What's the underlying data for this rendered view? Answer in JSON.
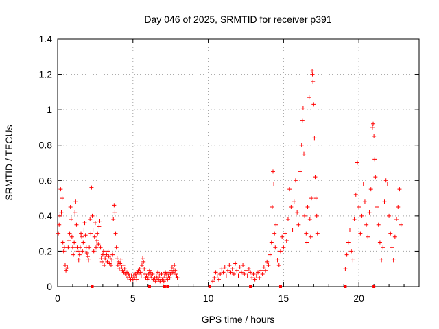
{
  "chart_data": {
    "type": "scatter",
    "title": "Day 046 of 2025, SRMTID for receiver p391",
    "xlabel": "GPS time / hours",
    "ylabel": "SRMTID / TECUs",
    "xlim": [
      0,
      24
    ],
    "ylim": [
      0,
      1.4
    ],
    "xticks": [
      "0",
      "5",
      "10",
      "15",
      "20"
    ],
    "yticks": [
      "0",
      "0.2",
      "0.4",
      "0.6",
      "0.8",
      "1",
      "1.2",
      "1.4"
    ],
    "marker": "plus",
    "color": "#ff0000",
    "grid": true,
    "series": [
      {
        "name": "SRMTID",
        "points": [
          [
            0.05,
            0.3
          ],
          [
            0.1,
            0.35
          ],
          [
            0.15,
            0.4
          ],
          [
            0.2,
            0.55
          ],
          [
            0.25,
            0.42
          ],
          [
            0.3,
            0.5
          ],
          [
            0.35,
            0.25
          ],
          [
            0.4,
            0.2
          ],
          [
            0.45,
            0.22
          ],
          [
            0.5,
            0.12
          ],
          [
            0.55,
            0.09
          ],
          [
            0.6,
            0.1
          ],
          [
            0.65,
            0.11
          ],
          [
            0.7,
            0.22
          ],
          [
            0.75,
            0.26
          ],
          [
            0.8,
            0.3
          ],
          [
            0.85,
            0.45
          ],
          [
            0.9,
            0.38
          ],
          [
            0.95,
            0.28
          ],
          [
            1.0,
            0.22
          ],
          [
            1.05,
            0.18
          ],
          [
            1.1,
            0.25
          ],
          [
            1.15,
            0.42
          ],
          [
            1.2,
            0.48
          ],
          [
            1.25,
            0.35
          ],
          [
            1.3,
            0.22
          ],
          [
            1.35,
            0.2
          ],
          [
            1.4,
            0.15
          ],
          [
            1.45,
            0.18
          ],
          [
            1.5,
            0.22
          ],
          [
            1.55,
            0.3
          ],
          [
            1.6,
            0.28
          ],
          [
            1.65,
            0.2
          ],
          [
            1.7,
            0.25
          ],
          [
            1.75,
            0.32
          ],
          [
            1.8,
            0.36
          ],
          [
            1.85,
            0.29
          ],
          [
            1.9,
            0.22
          ],
          [
            1.95,
            0.19
          ],
          [
            2.0,
            0.17
          ],
          [
            2.05,
            0.15
          ],
          [
            2.1,
            0.22
          ],
          [
            2.15,
            0.38
          ],
          [
            2.2,
            0.3
          ],
          [
            2.25,
            0.56
          ],
          [
            2.3,
            0.4
          ],
          [
            2.35,
            0.32
          ],
          [
            2.4,
            0.2
          ],
          [
            2.45,
            0.28
          ],
          [
            2.5,
            0.36
          ],
          [
            2.55,
            0.22
          ],
          [
            2.6,
            0.26
          ],
          [
            2.65,
            0.3
          ],
          [
            2.7,
            0.24
          ],
          [
            2.75,
            0.34
          ],
          [
            2.8,
            0.37
          ],
          [
            2.85,
            0.22
          ],
          [
            2.9,
            0.16
          ],
          [
            2.95,
            0.14
          ],
          [
            3.0,
            0.18
          ],
          [
            3.05,
            0.2
          ],
          [
            3.1,
            0.12
          ],
          [
            3.15,
            0.16
          ],
          [
            3.2,
            0.15
          ],
          [
            3.25,
            0.18
          ],
          [
            3.3,
            0.14
          ],
          [
            3.35,
            0.2
          ],
          [
            3.4,
            0.17
          ],
          [
            3.45,
            0.13
          ],
          [
            3.5,
            0.16
          ],
          [
            3.55,
            0.12
          ],
          [
            3.6,
            0.15
          ],
          [
            3.65,
            0.18
          ],
          [
            3.7,
            0.38
          ],
          [
            3.75,
            0.46
          ],
          [
            3.8,
            0.42
          ],
          [
            3.85,
            0.3
          ],
          [
            3.9,
            0.22
          ],
          [
            3.95,
            0.16
          ],
          [
            4.0,
            0.12
          ],
          [
            4.05,
            0.14
          ],
          [
            4.1,
            0.1
          ],
          [
            4.15,
            0.13
          ],
          [
            4.2,
            0.15
          ],
          [
            4.25,
            0.11
          ],
          [
            4.3,
            0.09
          ],
          [
            4.35,
            0.12
          ],
          [
            4.4,
            0.08
          ],
          [
            4.45,
            0.1
          ],
          [
            4.5,
            0.07
          ],
          [
            4.55,
            0.06
          ],
          [
            4.6,
            0.08
          ],
          [
            4.65,
            0.05
          ],
          [
            4.7,
            0.07
          ],
          [
            4.75,
            0.06
          ],
          [
            4.8,
            0.05
          ],
          [
            4.85,
            0.04
          ],
          [
            4.9,
            0.06
          ],
          [
            4.95,
            0.05
          ],
          [
            5.0,
            0.04
          ],
          [
            5.05,
            0.06
          ],
          [
            5.1,
            0.05
          ],
          [
            5.15,
            0.07
          ],
          [
            5.2,
            0.06
          ],
          [
            5.25,
            0.04
          ],
          [
            5.3,
            0.08
          ],
          [
            5.35,
            0.09
          ],
          [
            5.4,
            0.07
          ],
          [
            5.45,
            0.1
          ],
          [
            5.5,
            0.08
          ],
          [
            5.55,
            0.06
          ],
          [
            5.6,
            0.12
          ],
          [
            5.65,
            0.16
          ],
          [
            5.7,
            0.14
          ],
          [
            5.75,
            0.1
          ],
          [
            5.8,
            0.07
          ],
          [
            5.85,
            0.05
          ],
          [
            5.9,
            0.06
          ],
          [
            5.95,
            0.04
          ],
          [
            6.0,
            0.05
          ],
          [
            6.05,
            0.07
          ],
          [
            6.1,
            0.09
          ],
          [
            6.15,
            0.08
          ],
          [
            6.2,
            0.06
          ],
          [
            6.25,
            0.05
          ],
          [
            6.3,
            0.07
          ],
          [
            6.35,
            0.04
          ],
          [
            6.4,
            0.06
          ],
          [
            6.45,
            0.05
          ],
          [
            6.5,
            0.03
          ],
          [
            6.55,
            0.06
          ],
          [
            6.6,
            0.05
          ],
          [
            6.65,
            0.08
          ],
          [
            6.7,
            0.04
          ],
          [
            6.75,
            0.06
          ],
          [
            6.8,
            0.03
          ],
          [
            6.85,
            0.05
          ],
          [
            6.9,
            0.07
          ],
          [
            6.95,
            0.04
          ],
          [
            7.0,
            0.05
          ],
          [
            7.05,
            0.03
          ],
          [
            7.1,
            0.06
          ],
          [
            7.15,
            0.08
          ],
          [
            7.2,
            0.07
          ],
          [
            7.25,
            0.05
          ],
          [
            7.3,
            0.04
          ],
          [
            7.35,
            0.06
          ],
          [
            7.4,
            0.08
          ],
          [
            7.45,
            0.05
          ],
          [
            7.5,
            0.07
          ],
          [
            7.55,
            0.09
          ],
          [
            7.6,
            0.11
          ],
          [
            7.65,
            0.08
          ],
          [
            7.7,
            0.1
          ],
          [
            7.75,
            0.12
          ],
          [
            7.8,
            0.09
          ],
          [
            7.85,
            0.07
          ],
          [
            7.9,
            0.06
          ],
          [
            7.95,
            0.05
          ],
          [
            10.3,
            0.03
          ],
          [
            10.4,
            0.05
          ],
          [
            10.5,
            0.08
          ],
          [
            10.6,
            0.06
          ],
          [
            10.7,
            0.04
          ],
          [
            10.8,
            0.07
          ],
          [
            10.9,
            0.1
          ],
          [
            11.0,
            0.08
          ],
          [
            11.1,
            0.11
          ],
          [
            11.2,
            0.06
          ],
          [
            11.3,
            0.09
          ],
          [
            11.4,
            0.12
          ],
          [
            11.5,
            0.08
          ],
          [
            11.6,
            0.1
          ],
          [
            11.7,
            0.07
          ],
          [
            11.8,
            0.13
          ],
          [
            11.9,
            0.09
          ],
          [
            12.0,
            0.06
          ],
          [
            12.1,
            0.11
          ],
          [
            12.2,
            0.08
          ],
          [
            12.3,
            0.12
          ],
          [
            12.4,
            0.07
          ],
          [
            12.5,
            0.09
          ],
          [
            12.6,
            0.06
          ],
          [
            12.7,
            0.1
          ],
          [
            12.8,
            0.08
          ],
          [
            12.9,
            0.05
          ],
          [
            13.0,
            0.07
          ],
          [
            13.1,
            0.04
          ],
          [
            13.2,
            0.06
          ],
          [
            13.3,
            0.08
          ],
          [
            13.4,
            0.05
          ],
          [
            13.5,
            0.09
          ],
          [
            13.6,
            0.07
          ],
          [
            13.7,
            0.11
          ],
          [
            13.8,
            0.09
          ],
          [
            13.9,
            0.14
          ],
          [
            14.0,
            0.12
          ],
          [
            14.1,
            0.18
          ],
          [
            14.2,
            0.25
          ],
          [
            14.25,
            0.45
          ],
          [
            14.3,
            0.65
          ],
          [
            14.35,
            0.58
          ],
          [
            14.4,
            0.3
          ],
          [
            14.45,
            0.22
          ],
          [
            14.5,
            0.35
          ],
          [
            14.6,
            0.15
          ],
          [
            14.7,
            0.12
          ],
          [
            14.8,
            0.2
          ],
          [
            14.9,
            0.28
          ],
          [
            15.0,
            0.22
          ],
          [
            15.1,
            0.3
          ],
          [
            15.2,
            0.26
          ],
          [
            15.3,
            0.38
          ],
          [
            15.4,
            0.55
          ],
          [
            15.5,
            0.45
          ],
          [
            15.6,
            0.32
          ],
          [
            15.7,
            0.48
          ],
          [
            15.8,
            0.6
          ],
          [
            15.9,
            0.42
          ],
          [
            16.0,
            0.35
          ],
          [
            16.1,
            0.65
          ],
          [
            16.2,
            0.8
          ],
          [
            16.25,
            0.94
          ],
          [
            16.3,
            1.01
          ],
          [
            16.35,
            0.75
          ],
          [
            16.4,
            0.4
          ],
          [
            16.5,
            0.3
          ],
          [
            16.55,
            0.25
          ],
          [
            16.6,
            0.45
          ],
          [
            16.7,
            1.07
          ],
          [
            16.75,
            0.38
          ],
          [
            16.8,
            0.28
          ],
          [
            16.85,
            0.5
          ],
          [
            16.9,
            1.22
          ],
          [
            16.92,
            1.2
          ],
          [
            16.95,
            1.16
          ],
          [
            17.0,
            1.03
          ],
          [
            17.05,
            0.84
          ],
          [
            17.1,
            0.62
          ],
          [
            17.15,
            0.5
          ],
          [
            17.2,
            0.4
          ],
          [
            17.25,
            0.3
          ],
          [
            19.1,
            0.1
          ],
          [
            19.2,
            0.18
          ],
          [
            19.3,
            0.25
          ],
          [
            19.4,
            0.32
          ],
          [
            19.5,
            0.2
          ],
          [
            19.6,
            0.15
          ],
          [
            19.7,
            0.38
          ],
          [
            19.8,
            0.52
          ],
          [
            19.9,
            0.7
          ],
          [
            20.0,
            0.45
          ],
          [
            20.1,
            0.3
          ],
          [
            20.2,
            0.4
          ],
          [
            20.3,
            0.58
          ],
          [
            20.4,
            0.48
          ],
          [
            20.5,
            0.35
          ],
          [
            20.6,
            0.28
          ],
          [
            20.7,
            0.42
          ],
          [
            20.8,
            0.55
          ],
          [
            20.9,
            0.9
          ],
          [
            20.95,
            0.92
          ],
          [
            21.0,
            0.85
          ],
          [
            21.05,
            0.72
          ],
          [
            21.1,
            0.62
          ],
          [
            21.2,
            0.45
          ],
          [
            21.3,
            0.35
          ],
          [
            21.4,
            0.25
          ],
          [
            21.5,
            0.15
          ],
          [
            21.6,
            0.22
          ],
          [
            21.7,
            0.48
          ],
          [
            21.8,
            0.6
          ],
          [
            21.9,
            0.58
          ],
          [
            22.0,
            0.4
          ],
          [
            22.1,
            0.3
          ],
          [
            22.2,
            0.22
          ],
          [
            22.3,
            0.15
          ],
          [
            22.4,
            0.28
          ],
          [
            22.5,
            0.38
          ],
          [
            22.6,
            0.45
          ],
          [
            22.7,
            0.55
          ],
          [
            22.8,
            0.35
          ]
        ]
      }
    ],
    "zero_markers_x": [
      2.3,
      6.1,
      7.1,
      7.3,
      10.1,
      12.8,
      14.8,
      19.1,
      21.0
    ]
  }
}
